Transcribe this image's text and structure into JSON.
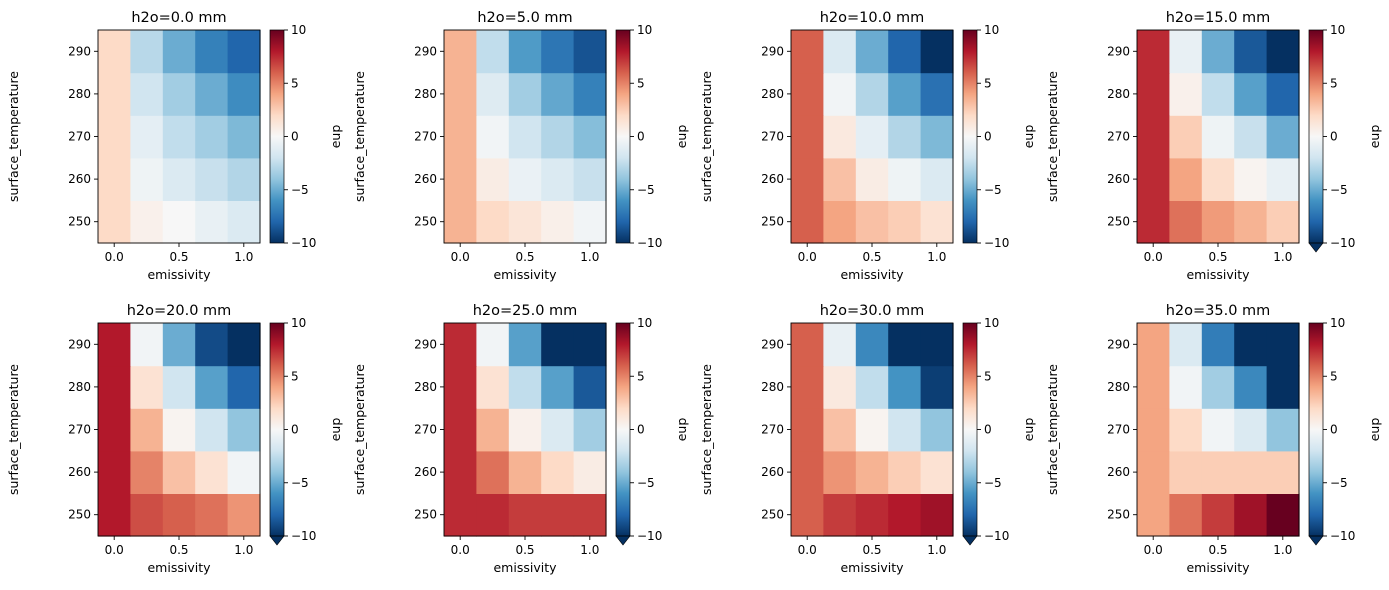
{
  "chart_data": [
    {
      "type": "heatmap",
      "title": "h2o=0.0 mm",
      "xlabel": "emissivity",
      "ylabel": "surface_temperature",
      "x": [
        0.0,
        0.25,
        0.5,
        0.75,
        1.0
      ],
      "y": [
        250,
        260,
        270,
        280,
        290
      ],
      "xticks": [
        "0.0",
        "0.5",
        "1.0"
      ],
      "yticks": [
        "250",
        "260",
        "270",
        "280",
        "290"
      ],
      "values": [
        [
          2,
          0.5,
          0,
          -0.8,
          -1.5
        ],
        [
          2,
          -0.5,
          -1.5,
          -2.3,
          -3
        ],
        [
          2,
          -1,
          -2.5,
          -3.5,
          -4.5
        ],
        [
          2,
          -2,
          -3.5,
          -5,
          -6.3
        ],
        [
          2,
          -2.8,
          -5,
          -6.8,
          -8
        ]
      ],
      "colorbar": {
        "label": "eup",
        "vmin": -10,
        "vmax": 10,
        "ticks": [
          "10",
          "5",
          "0",
          "−5",
          "−10"
        ],
        "extend": "neither"
      }
    },
    {
      "type": "heatmap",
      "title": "h2o=5.0 mm",
      "xlabel": "emissivity",
      "ylabel": "surface_temperature",
      "x": [
        0.0,
        0.25,
        0.5,
        0.75,
        1.0
      ],
      "y": [
        250,
        260,
        270,
        280,
        290
      ],
      "xticks": [
        "0.0",
        "0.5",
        "1.0"
      ],
      "yticks": [
        "250",
        "260",
        "270",
        "280",
        "290"
      ],
      "values": [
        [
          3.5,
          2,
          1.3,
          0.6,
          -0.3
        ],
        [
          3.5,
          0.8,
          -0.7,
          -1.5,
          -2.3
        ],
        [
          3.5,
          -0.3,
          -2,
          -3,
          -4.3
        ],
        [
          3.5,
          -1.3,
          -3.5,
          -5.2,
          -6.8
        ],
        [
          3.5,
          -2.5,
          -5.7,
          -7.3,
          -8.7
        ]
      ],
      "colorbar": {
        "label": "eup",
        "vmin": -10,
        "vmax": 10,
        "ticks": [
          "10",
          "5",
          "0",
          "−5",
          "−10"
        ],
        "extend": "neither"
      }
    },
    {
      "type": "heatmap",
      "title": "h2o=10.0 mm",
      "xlabel": "emissivity",
      "ylabel": "surface_temperature",
      "x": [
        0.0,
        0.25,
        0.5,
        0.75,
        1.0
      ],
      "y": [
        250,
        260,
        270,
        280,
        290
      ],
      "xticks": [
        "0.0",
        "0.5",
        "1.0"
      ],
      "yticks": [
        "250",
        "260",
        "270",
        "280",
        "290"
      ],
      "values": [
        [
          6,
          4,
          3,
          2.5,
          1.5
        ],
        [
          6,
          3,
          0.8,
          -0.5,
          -1.5
        ],
        [
          6,
          1,
          -1,
          -3,
          -4.5
        ],
        [
          6,
          -0.3,
          -3,
          -5.5,
          -7.5
        ],
        [
          6,
          -1.5,
          -5,
          -8,
          -10
        ]
      ],
      "colorbar": {
        "label": "eup",
        "vmin": -10,
        "vmax": 10,
        "ticks": [
          "10",
          "5",
          "0",
          "−5",
          "−10"
        ],
        "extend": "neither"
      }
    },
    {
      "type": "heatmap",
      "title": "h2o=15.0 mm",
      "xlabel": "emissivity",
      "ylabel": "surface_temperature",
      "x": [
        0.0,
        0.25,
        0.5,
        0.75,
        1.0
      ],
      "y": [
        250,
        260,
        270,
        280,
        290
      ],
      "xticks": [
        "0.0",
        "0.5",
        "1.0"
      ],
      "yticks": [
        "250",
        "260",
        "270",
        "280",
        "290"
      ],
      "values": [
        [
          7.5,
          5.5,
          4.3,
          3.5,
          2.5
        ],
        [
          7.5,
          4,
          1.8,
          0.3,
          -0.8
        ],
        [
          7.5,
          2.5,
          -0.5,
          -2.3,
          -5
        ],
        [
          7.5,
          0.5,
          -2.5,
          -5.5,
          -8
        ],
        [
          7.5,
          -0.8,
          -5,
          -8.5,
          -11
        ]
      ],
      "colorbar": {
        "label": "eup",
        "vmin": -10,
        "vmax": 10,
        "ticks": [
          "10",
          "5",
          "0",
          "−5",
          "−10"
        ],
        "extend": "min"
      }
    },
    {
      "type": "heatmap",
      "title": "h2o=20.0 mm",
      "xlabel": "emissivity",
      "ylabel": "surface_temperature",
      "x": [
        0.0,
        0.25,
        0.5,
        0.75,
        1.0
      ],
      "y": [
        250,
        260,
        270,
        280,
        290
      ],
      "xticks": [
        "0.0",
        "0.5",
        "1.0"
      ],
      "yticks": [
        "250",
        "260",
        "270",
        "280",
        "290"
      ],
      "values": [
        [
          8,
          6.5,
          6,
          5.5,
          4.5
        ],
        [
          8,
          5,
          3,
          1.5,
          -0.3
        ],
        [
          8,
          3.5,
          0.3,
          -2,
          -4
        ],
        [
          8,
          1.5,
          -2,
          -5.5,
          -8
        ],
        [
          8,
          -0.3,
          -5,
          -9,
          -11
        ]
      ],
      "colorbar": {
        "label": "eup",
        "vmin": -10,
        "vmax": 10,
        "ticks": [
          "10",
          "5",
          "0",
          "−5",
          "−10"
        ],
        "extend": "min"
      }
    },
    {
      "type": "heatmap",
      "title": "h2o=25.0 mm",
      "xlabel": "emissivity",
      "ylabel": "surface_temperature",
      "x": [
        0.0,
        0.25,
        0.5,
        0.75,
        1.0
      ],
      "y": [
        250,
        260,
        270,
        280,
        290
      ],
      "xticks": [
        "0.0",
        "0.5",
        "1.0"
      ],
      "yticks": [
        "250",
        "260",
        "270",
        "280",
        "290"
      ],
      "values": [
        [
          7.5,
          7.5,
          7,
          7,
          7
        ],
        [
          7.5,
          5.5,
          3.5,
          2,
          0.8
        ],
        [
          7.5,
          3.5,
          0.5,
          -1.5,
          -3.5
        ],
        [
          7.5,
          1.5,
          -2.5,
          -5.5,
          -8.5
        ],
        [
          7.5,
          -0.3,
          -5.5,
          -10,
          -11
        ]
      ],
      "colorbar": {
        "label": "eup",
        "vmin": -10,
        "vmax": 10,
        "ticks": [
          "10",
          "5",
          "0",
          "−5",
          "−10"
        ],
        "extend": "min"
      }
    },
    {
      "type": "heatmap",
      "title": "h2o=30.0 mm",
      "xlabel": "emissivity",
      "ylabel": "surface_temperature",
      "x": [
        0.0,
        0.25,
        0.5,
        0.75,
        1.0
      ],
      "y": [
        250,
        260,
        270,
        280,
        290
      ],
      "xticks": [
        "0.0",
        "0.5",
        "1.0"
      ],
      "yticks": [
        "250",
        "260",
        "270",
        "280",
        "290"
      ],
      "values": [
        [
          6,
          7,
          7.5,
          8,
          8.5
        ],
        [
          6,
          4.5,
          3.5,
          2.5,
          1.5
        ],
        [
          6,
          3,
          0.3,
          -2,
          -4
        ],
        [
          6,
          1,
          -2.5,
          -6,
          -9.5
        ],
        [
          6,
          -0.8,
          -6.5,
          -11,
          -11
        ]
      ],
      "colorbar": {
        "label": "eup",
        "vmin": -10,
        "vmax": 10,
        "ticks": [
          "10",
          "5",
          "0",
          "−5",
          "−10"
        ],
        "extend": "min"
      }
    },
    {
      "type": "heatmap",
      "title": "h2o=35.0 mm",
      "xlabel": "emissivity",
      "ylabel": "surface_temperature",
      "x": [
        0.0,
        0.25,
        0.5,
        0.75,
        1.0
      ],
      "y": [
        250,
        260,
        270,
        280,
        290
      ],
      "xticks": [
        "0.0",
        "0.5",
        "1.0"
      ],
      "yticks": [
        "250",
        "260",
        "270",
        "280",
        "290"
      ],
      "values": [
        [
          4,
          5.5,
          7,
          8.5,
          10
        ],
        [
          4,
          2.5,
          2.5,
          2.5,
          2.5
        ],
        [
          4,
          2,
          -0.3,
          -1.5,
          -4
        ],
        [
          4,
          -0.3,
          -3.5,
          -6.5,
          -11
        ],
        [
          4,
          -1.5,
          -7,
          -11,
          -11
        ]
      ],
      "colorbar": {
        "label": "eup",
        "vmin": -10,
        "vmax": 10,
        "ticks": [
          "10",
          "5",
          "0",
          "−5",
          "−10"
        ],
        "extend": "min"
      }
    }
  ]
}
